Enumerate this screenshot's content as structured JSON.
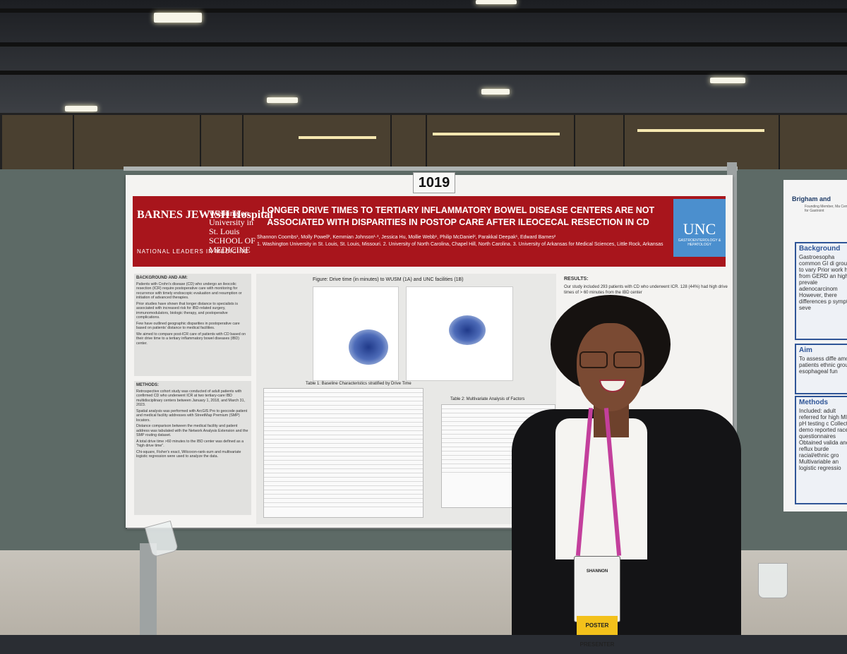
{
  "poster": {
    "number": "1019",
    "institution_left": "BARNES JEWISH Hospital",
    "institution_left_sub": "NATIONAL LEADERS IN MEDICINE",
    "institution_mid": "Washington University in St. Louis SCHOOL OF MEDICINE",
    "title": "LONGER DRIVE TIMES TO TERTIARY INFLAMMATORY BOWEL DISEASE CENTERS ARE NOT ASSOCIATED WITH DISPARITIES IN POSTOP CARE AFTER ILEOCECAL RESECTION IN CD",
    "authors": "Shannon Coombs¹, Molly Powell², Kemmian Johnson¹·³, Jessica Hu, Mollie Webb¹, Philip McDaniel², Parakkal Deepak¹, Edward Barnes²",
    "affiliations": "1. Washington University in St. Louis, St. Louis, Missouri. 2. University of North Carolina, Chapel Hill, North Carolina. 3. University of Arkansas for Medical Sciences, Little Rock, Arkansas",
    "logo_right": "UNC",
    "logo_right_sub": "GASTROENTEROLOGY & HEPATOLOGY",
    "background_heading": "BACKGROUND AND AIM:",
    "background_text": [
      "Patients with Crohn's disease (CD) who undergo an ileocolic resection (ICR) require postoperative care with monitoring for recurrence with timely endoscopic evaluation and resumption or initiation of advanced therapies.",
      "Prior studies have shown that longer distance to specialists is associated with increased risk for IBD-related surgery, immunomodulators, biologic therapy, and postoperative complications.",
      "Few have outlined geographic disparities in postoperative care based on patients' distance to medical facilities.",
      "We aimed to compare post-ICR care of patients with CD based on their drive time to a tertiary inflammatory bowel diseases (IBD) center."
    ],
    "methods_heading": "METHODS:",
    "methods_text": [
      "Retrospective cohort study was conducted of adult patients with confirmed CD who underwent ICR at two tertiary-care IBD multidisciplinary centers between January 1, 2018, and March 31, 2023.",
      "Spatial analysis was performed with ArcGIS Pro to geocode patient and medical facility addresses with StreetMap Premium (SMP) locators.",
      "Distance comparison between the medical facility and patient address was tabulated with the Network Analysis Extension and the SMP routing dataset.",
      "A total drive time >60 minutes to the IBD center was defined as a \"high drive time\".",
      "Chi-square, Fisher's exact, Wilcoxon-rank-sum and multivariate logistic regression were used to analyze the data."
    ],
    "figure_title": "Figure: Drive time (in minutes) to WUSM (1A) and UNC facilities (1B)",
    "table1_title": "Table 1: Baseline Characteristics stratified by Drive Time",
    "table2_title": "Table 2: Multivariate Analysis of Factors",
    "results_heading": "RESULTS:",
    "results_text": "Our study included 293 patients with CD who underwent ICR. 128 (44%) had high drive times of > 60 minutes from the IBD center"
  },
  "poster_right": {
    "header": "Brigham and",
    "sub": "Founding Member, Ma Center for Gastroint",
    "box1_heading": "Background",
    "box1_text": "Gastroesopha common GI di groups to vary Prior work has from GERD an higher prevale adenocarcinom However, there differences p symptom seve",
    "box2_heading": "Aim",
    "box2_text": "To assess diffe among patients ethnic groups esophageal fun",
    "box3_heading": "Methods",
    "box3_text": "Included: adult referred for high MII-pH testing c Collected demo reported race/et questionnaires Obtained valida and reflux burde racial/ethnic gro Multivariable an logistic regressio"
  },
  "badge": {
    "name": "SHANNON",
    "role": "POSTER PRESENTER"
  }
}
